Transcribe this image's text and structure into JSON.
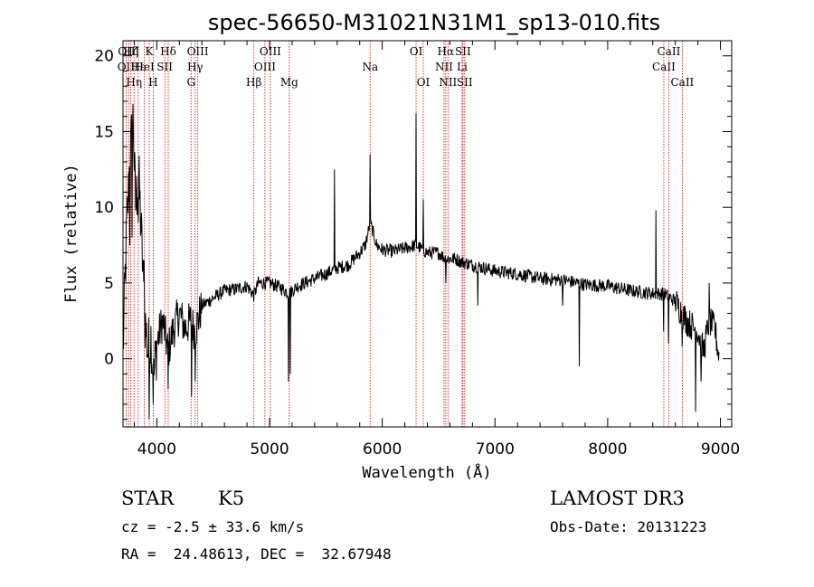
{
  "chart_data": {
    "type": "line",
    "title": "spec-56650-M31021N31M1_sp13-010.fits",
    "xlabel": "Wavelength (Å)",
    "ylabel": "Flux (relative)",
    "xlim": [
      3700,
      9100
    ],
    "ylim": [
      -4.5,
      21
    ],
    "xticks": [
      4000,
      5000,
      6000,
      7000,
      8000,
      9000
    ],
    "yticks": [
      0,
      5,
      10,
      15,
      20
    ],
    "grid": false,
    "line_color": "#000000",
    "marker_color": "#cc0000",
    "anchors": [
      [
        3700,
        0.5
      ],
      [
        3730,
        8
      ],
      [
        3760,
        13
      ],
      [
        3790,
        16
      ],
      [
        3810,
        10
      ],
      [
        3840,
        12
      ],
      [
        3870,
        7
      ],
      [
        3890,
        3
      ],
      [
        3920,
        0.5
      ],
      [
        3950,
        1.5
      ],
      [
        3970,
        -1.5
      ],
      [
        4000,
        1
      ],
      [
        4050,
        2.5
      ],
      [
        4100,
        0.5
      ],
      [
        4150,
        2
      ],
      [
        4200,
        3
      ],
      [
        4250,
        2
      ],
      [
        4300,
        2.5
      ],
      [
        4340,
        1.8
      ],
      [
        4400,
        3.5
      ],
      [
        4500,
        4
      ],
      [
        4600,
        4.5
      ],
      [
        4700,
        4.6
      ],
      [
        4800,
        4.8
      ],
      [
        4860,
        4.2
      ],
      [
        4900,
        5
      ],
      [
        5000,
        5
      ],
      [
        5100,
        4.7
      ],
      [
        5170,
        4.3
      ],
      [
        5250,
        4.8
      ],
      [
        5400,
        5.3
      ],
      [
        5500,
        5.6
      ],
      [
        5600,
        6
      ],
      [
        5700,
        6.2
      ],
      [
        5800,
        7
      ],
      [
        5850,
        7.5
      ],
      [
        5893,
        9
      ],
      [
        5950,
        7.5
      ],
      [
        6000,
        7.2
      ],
      [
        6100,
        7.1
      ],
      [
        6200,
        7.3
      ],
      [
        6300,
        7.5
      ],
      [
        6400,
        7
      ],
      [
        6500,
        7
      ],
      [
        6563,
        6.6
      ],
      [
        6650,
        6.6
      ],
      [
        6700,
        6.4
      ],
      [
        6800,
        6.2
      ],
      [
        7000,
        5.8
      ],
      [
        7200,
        5.6
      ],
      [
        7400,
        5.3
      ],
      [
        7600,
        5.2
      ],
      [
        7800,
        4.9
      ],
      [
        8000,
        4.8
      ],
      [
        8200,
        4.5
      ],
      [
        8400,
        4.3
      ],
      [
        8500,
        4.3
      ],
      [
        8600,
        3.8
      ],
      [
        8700,
        2.5
      ],
      [
        8800,
        1.8
      ],
      [
        8850,
        0.5
      ],
      [
        8900,
        2.5
      ],
      [
        8950,
        2
      ],
      [
        8990,
        0
      ]
    ],
    "features": [
      [
        3760,
        7.5
      ],
      [
        3780,
        8
      ],
      [
        3835,
        9
      ],
      [
        3890,
        6.5
      ],
      [
        3933,
        -4
      ],
      [
        3968,
        -3
      ],
      [
        4101,
        -2
      ],
      [
        4308,
        -2.5
      ],
      [
        4340,
        -1.5
      ],
      [
        5167,
        -1.5
      ],
      [
        5183,
        -1
      ],
      [
        5577,
        12.5
      ],
      [
        5893,
        13.5
      ],
      [
        6300,
        16.2
      ],
      [
        6364,
        10.5
      ],
      [
        6563,
        5
      ],
      [
        6850,
        3.5
      ],
      [
        7600,
        3.5
      ],
      [
        7750,
        -0.5
      ],
      [
        8430,
        9.8
      ],
      [
        8498,
        1.8
      ],
      [
        8542,
        1
      ],
      [
        8662,
        0.8
      ],
      [
        8780,
        -3.5
      ],
      [
        8830,
        -1.5
      ],
      [
        8900,
        5
      ]
    ],
    "line_markers": [
      {
        "wavelength": 3727,
        "label": "OII",
        "row": 1
      },
      {
        "wavelength": 3750,
        "label": "OIII",
        "row": 0
      },
      {
        "wavelength": 3770,
        "label": "Hζ",
        "row": 0
      },
      {
        "wavelength": 3798,
        "label": "Hη",
        "row": 2
      },
      {
        "wavelength": 3835,
        "label": "Hε",
        "row": 1
      },
      {
        "wavelength": 3889,
        "label": "HeI",
        "row": 1
      },
      {
        "wavelength": 3933,
        "label": "K",
        "row": 0
      },
      {
        "wavelength": 3968,
        "label": "H",
        "row": 2
      },
      {
        "wavelength": 4070,
        "label": "SII",
        "row": 1
      },
      {
        "wavelength": 4101,
        "label": "Hδ",
        "row": 0
      },
      {
        "wavelength": 4304,
        "label": "G",
        "row": 2
      },
      {
        "wavelength": 4340,
        "label": "Hγ",
        "row": 1
      },
      {
        "wavelength": 4363,
        "label": "OIII",
        "row": 0
      },
      {
        "wavelength": 4861,
        "label": "Hβ",
        "row": 2
      },
      {
        "wavelength": 4959,
        "label": "OIII",
        "row": 1
      },
      {
        "wavelength": 5007,
        "label": "OIII",
        "row": 0
      },
      {
        "wavelength": 5175,
        "label": "Mg",
        "row": 2
      },
      {
        "wavelength": 5893,
        "label": "Na",
        "row": 1
      },
      {
        "wavelength": 6300,
        "label": "OI",
        "row": 0
      },
      {
        "wavelength": 6364,
        "label": "OI",
        "row": 2
      },
      {
        "wavelength": 6548,
        "label": "NII",
        "row": 1
      },
      {
        "wavelength": 6563,
        "label": "Hα",
        "row": 0
      },
      {
        "wavelength": 6583,
        "label": "NII",
        "row": 2
      },
      {
        "wavelength": 6708,
        "label": "Li",
        "row": 1
      },
      {
        "wavelength": 6716,
        "label": "SII",
        "row": 0
      },
      {
        "wavelength": 6731,
        "label": "SII",
        "row": 2
      },
      {
        "wavelength": 8498,
        "label": "CaII",
        "row": 1
      },
      {
        "wavelength": 8542,
        "label": "CaII",
        "row": 0
      },
      {
        "wavelength": 8662,
        "label": "CaII",
        "row": 2
      }
    ]
  },
  "info": {
    "object_class": "STAR",
    "subclass": "K5",
    "survey": "LAMOST DR3",
    "redshift": "cz = -2.5 ± 33.6 km/s",
    "obs_date": "Obs-Date: 20131223",
    "coords": "RA =  24.48613, DEC =  32.67948"
  }
}
